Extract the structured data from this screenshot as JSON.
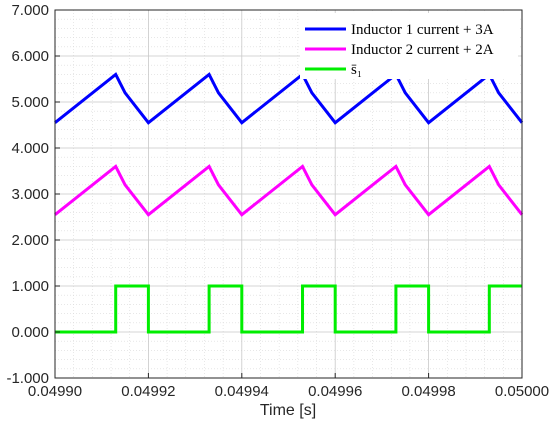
{
  "chart_data": {
    "type": "line",
    "xlabel": "Time [s]",
    "ylabel": "",
    "xlim": [
      0.0499,
      0.05
    ],
    "ylim": [
      -1.0,
      7.0
    ],
    "x_ticks": [
      "0.04990",
      "0.04992",
      "0.04994",
      "0.04996",
      "0.04998",
      "0.05000"
    ],
    "y_ticks": [
      "-1.000",
      "0.000",
      "1.000",
      "2.000",
      "3.000",
      "4.000",
      "5.000",
      "6.000",
      "7.000"
    ],
    "grid": true,
    "legend_position": "top-right",
    "series": [
      {
        "name": "Inductor 1 current + 3A",
        "color": "#0000ff",
        "x": [
          0.0499,
          0.049913,
          0.049915,
          0.04992,
          0.049933,
          0.049935,
          0.04994,
          0.049953,
          0.049955,
          0.04996,
          0.049973,
          0.049975,
          0.04998,
          0.049993,
          0.049995,
          0.05
        ],
        "y": [
          4.55,
          5.6,
          5.2,
          4.55,
          5.6,
          5.2,
          4.55,
          5.6,
          5.2,
          4.55,
          5.6,
          5.2,
          4.55,
          5.6,
          5.2,
          4.55
        ]
      },
      {
        "name": "Inductor 2 current + 2A",
        "color": "#ff00ff",
        "x": [
          0.0499,
          0.049913,
          0.049915,
          0.04992,
          0.049933,
          0.049935,
          0.04994,
          0.049953,
          0.049955,
          0.04996,
          0.049973,
          0.049975,
          0.04998,
          0.049993,
          0.049995,
          0.05
        ],
        "y": [
          2.55,
          3.6,
          3.2,
          2.55,
          3.6,
          3.2,
          2.55,
          3.6,
          3.2,
          2.55,
          3.6,
          3.2,
          2.55,
          3.6,
          3.2,
          2.55
        ]
      },
      {
        "name": "s̄₁",
        "color": "#00ee00",
        "x": [
          0.0499,
          0.049913,
          0.049913,
          0.04992,
          0.04992,
          0.049933,
          0.049933,
          0.04994,
          0.04994,
          0.049953,
          0.049953,
          0.04996,
          0.04996,
          0.049973,
          0.049973,
          0.04998,
          0.04998,
          0.049993,
          0.049993,
          0.05
        ],
        "y": [
          0,
          0,
          1,
          1,
          0,
          0,
          1,
          1,
          0,
          0,
          1,
          1,
          0,
          0,
          1,
          1,
          0,
          0,
          1,
          1
        ]
      }
    ]
  }
}
